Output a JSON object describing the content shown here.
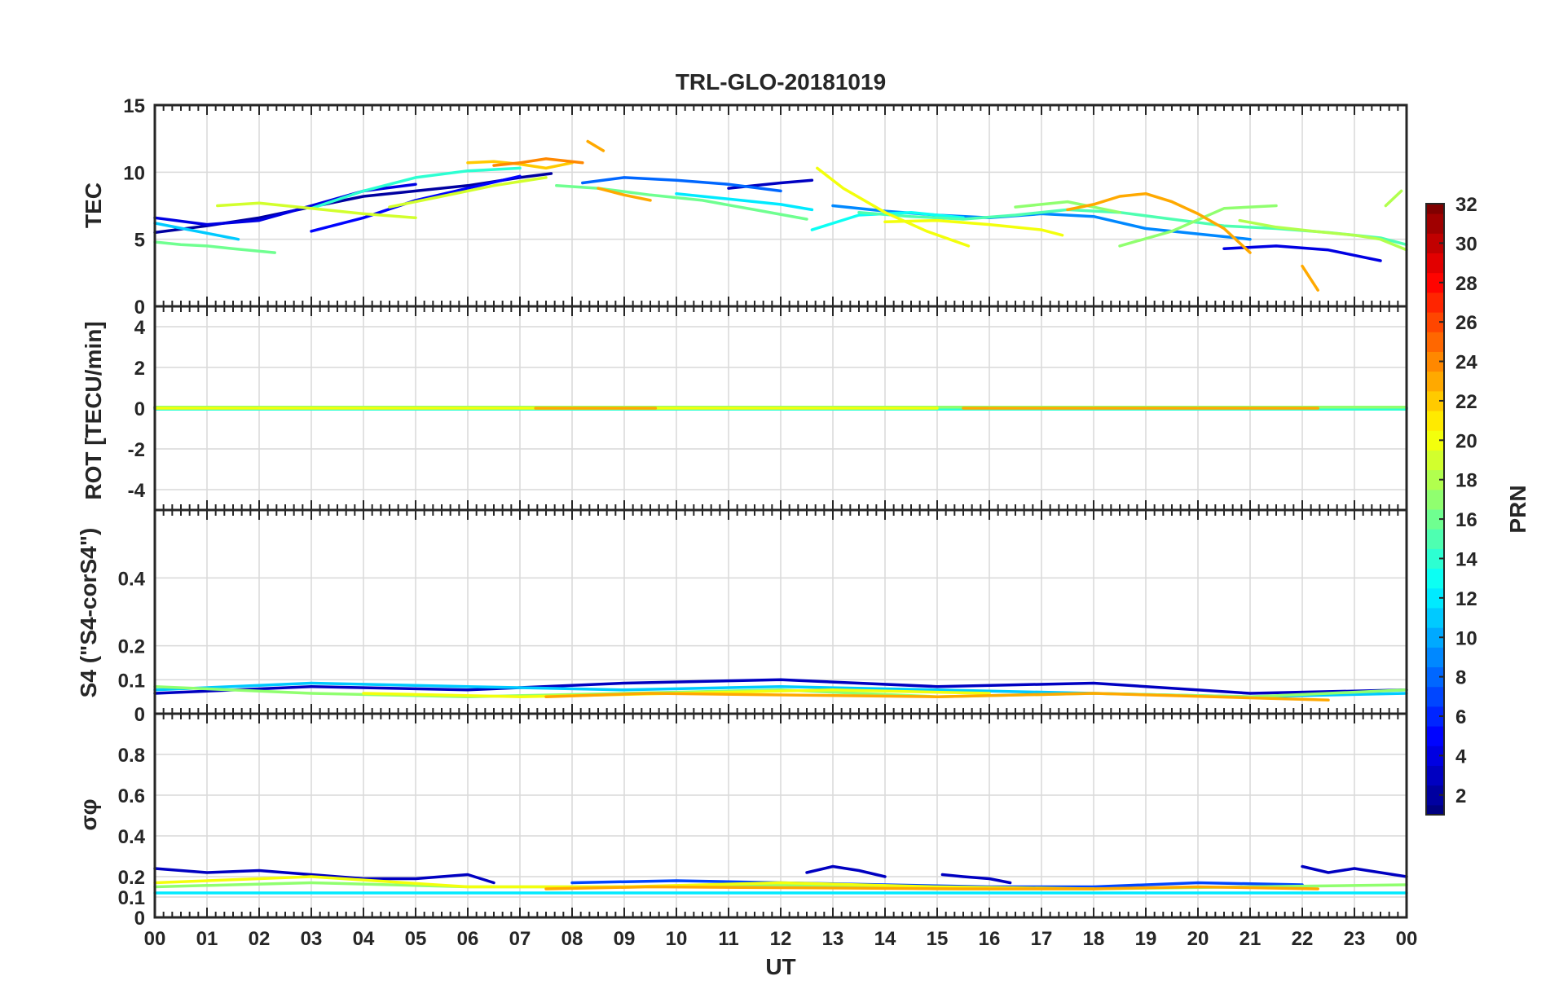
{
  "chart_data": {
    "type": "line",
    "title": "TRL-GLO-20181019",
    "xlabel": "UT",
    "x_ticks": [
      "00",
      "01",
      "02",
      "03",
      "04",
      "05",
      "06",
      "07",
      "08",
      "09",
      "10",
      "11",
      "12",
      "13",
      "14",
      "15",
      "16",
      "17",
      "18",
      "19",
      "20",
      "21",
      "22",
      "23",
      "00"
    ],
    "xlim": [
      0,
      24
    ],
    "panels": [
      {
        "ylabel": "TEC",
        "ylim": [
          0,
          15
        ],
        "y_ticks": [
          "0",
          "5",
          "10",
          "15"
        ],
        "series": [
          {
            "prn": 2,
            "x": [
              0,
              1,
              2,
              3,
              4,
              5,
              6,
              7,
              7.6
            ],
            "y": [
              5.5,
              6.0,
              6.6,
              7.4,
              8.2,
              8.6,
              9.0,
              9.6,
              9.9
            ]
          },
          {
            "prn": 3,
            "x": [
              11.0,
              11.5,
              12.0,
              12.6
            ],
            "y": [
              8.8,
              9.0,
              9.2,
              9.4
            ]
          },
          {
            "prn": 4,
            "x": [
              0,
              1,
              2,
              3,
              4,
              5
            ],
            "y": [
              6.6,
              6.1,
              6.4,
              7.5,
              8.6,
              9.1
            ]
          },
          {
            "prn": 5,
            "x": [
              3,
              4,
              5,
              6,
              7
            ],
            "y": [
              5.6,
              6.6,
              7.9,
              8.8,
              9.7
            ]
          },
          {
            "prn": 4,
            "x": [
              20.5,
              21.5,
              22.5,
              23.5
            ],
            "y": [
              4.3,
              4.5,
              4.2,
              3.4
            ]
          },
          {
            "prn": 8,
            "x": [
              8.2,
              9,
              10,
              11,
              12
            ],
            "y": [
              9.2,
              9.6,
              9.4,
              9.1,
              8.6
            ]
          },
          {
            "prn": 9,
            "x": [
              13.0,
              14,
              15,
              16,
              17,
              18,
              19,
              20,
              21
            ],
            "y": [
              7.5,
              7.1,
              6.8,
              6.6,
              6.9,
              6.7,
              5.8,
              5.4,
              5.0
            ]
          },
          {
            "prn": 11,
            "x": [
              0,
              0.8,
              1.6
            ],
            "y": [
              6.2,
              5.6,
              5.0
            ]
          },
          {
            "prn": 12,
            "x": [
              10,
              11,
              12,
              12.6
            ],
            "y": [
              8.4,
              8.0,
              7.6,
              7.2
            ]
          },
          {
            "prn": 13,
            "x": [
              12.6,
              13.5,
              14.5,
              15.5
            ],
            "y": [
              5.7,
              6.8,
              7.0,
              6.6
            ]
          },
          {
            "prn": 14,
            "x": [
              3,
              4,
              5,
              6,
              7
            ],
            "y": [
              7.3,
              8.6,
              9.6,
              10.1,
              10.3
            ]
          },
          {
            "prn": 15,
            "x": [
              13.5,
              14.5,
              15.5,
              16.5,
              17.5,
              18.5,
              19.5,
              20.5,
              21.5,
              22.5,
              23.5,
              24
            ],
            "y": [
              7.0,
              6.7,
              6.5,
              6.8,
              7.2,
              7.0,
              6.5,
              6.0,
              5.8,
              5.5,
              5.1,
              4.6
            ]
          },
          {
            "prn": 16,
            "x": [
              0,
              0.5,
              1,
              1.5,
              2.3
            ],
            "y": [
              4.8,
              4.6,
              4.5,
              4.3,
              4.0
            ]
          },
          {
            "prn": 16,
            "x": [
              7.7,
              8.5,
              9.5,
              10.5,
              11.5,
              12.5
            ],
            "y": [
              9.0,
              8.8,
              8.3,
              7.9,
              7.2,
              6.5
            ]
          },
          {
            "prn": 17,
            "x": [
              16.5,
              17.5,
              18.5
            ],
            "y": [
              7.4,
              7.8,
              7.0
            ]
          },
          {
            "prn": 17,
            "x": [
              18.5,
              19.5,
              20.5,
              21.5
            ],
            "y": [
              4.5,
              5.6,
              7.3,
              7.5
            ]
          },
          {
            "prn": 18,
            "x": [
              20.8,
              21.5,
              22.2,
              23,
              23.5,
              24
            ],
            "y": [
              6.4,
              5.9,
              5.6,
              5.3,
              5.0,
              4.2
            ]
          },
          {
            "prn": 18,
            "x": [
              23.6,
              23.9
            ],
            "y": [
              7.5,
              8.6
            ]
          },
          {
            "prn": 19,
            "x": [
              1.2,
              2,
              3,
              4,
              5
            ],
            "y": [
              7.5,
              7.7,
              7.3,
              6.9,
              6.6
            ]
          },
          {
            "prn": 19,
            "x": [
              4.5,
              5.5,
              6.5,
              7.5
            ],
            "y": [
              7.4,
              8.2,
              9.0,
              9.6
            ]
          },
          {
            "prn": 20,
            "x": [
              12.7,
              13.2,
              14,
              14.8,
              15.6
            ],
            "y": [
              10.3,
              8.8,
              7.0,
              5.6,
              4.5
            ]
          },
          {
            "prn": 20,
            "x": [
              14,
              15,
              16,
              17,
              17.4
            ],
            "y": [
              6.3,
              6.4,
              6.1,
              5.7,
              5.3
            ]
          },
          {
            "prn": 22,
            "x": [
              6,
              6.5,
              7,
              7.5,
              8
            ],
            "y": [
              10.7,
              10.8,
              10.6,
              10.3,
              10.7
            ]
          },
          {
            "prn": 23,
            "x": [
              8.3,
              8.6
            ],
            "y": [
              12.3,
              11.6
            ]
          },
          {
            "prn": 23,
            "x": [
              8.5,
              9,
              9.5
            ],
            "y": [
              8.8,
              8.3,
              7.9
            ]
          },
          {
            "prn": 23,
            "x": [
              17.5,
              18,
              18.5,
              19,
              19.5,
              20,
              20.5,
              21
            ],
            "y": [
              7.2,
              7.6,
              8.2,
              8.4,
              7.8,
              6.9,
              5.8,
              4.0
            ]
          },
          {
            "prn": 23,
            "x": [
              22.0,
              22.3
            ],
            "y": [
              3.0,
              1.2
            ]
          },
          {
            "prn": 24,
            "x": [
              6.5,
              7,
              7.5,
              8.2
            ],
            "y": [
              10.5,
              10.7,
              11.0,
              10.7
            ]
          }
        ]
      },
      {
        "ylabel": "ROT [TECU/min]",
        "ylim": [
          -5,
          5
        ],
        "y_ticks": [
          "-4",
          "-2",
          "0",
          "2",
          "4"
        ],
        "series": [
          {
            "prn": 3,
            "x": [
              0,
              12.6
            ],
            "y": [
              0.05,
              0.05
            ]
          },
          {
            "prn": 9,
            "x": [
              0,
              24
            ],
            "y": [
              0.0,
              0.0
            ]
          },
          {
            "prn": 14,
            "x": [
              0,
              24
            ],
            "y": [
              -0.05,
              -0.05
            ]
          },
          {
            "prn": 17,
            "x": [
              0,
              24
            ],
            "y": [
              0.05,
              0.05
            ]
          },
          {
            "prn": 20,
            "x": [
              0,
              15
            ],
            "y": [
              0.0,
              0.0
            ]
          },
          {
            "prn": 23,
            "x": [
              7.3,
              9.6
            ],
            "y": [
              0.0,
              0.0
            ]
          },
          {
            "prn": 23,
            "x": [
              15.5,
              22.3
            ],
            "y": [
              0.0,
              0.0
            ]
          }
        ]
      },
      {
        "ylabel": "S4 (\"S4-corS4\")",
        "ylim": [
          0,
          0.6
        ],
        "y_ticks": [
          "0",
          "0.1",
          "0.2",
          "0.4"
        ],
        "series": [
          {
            "prn": 3,
            "x": [
              0,
              3,
              6,
              9,
              12,
              15,
              18,
              21,
              24
            ],
            "y": [
              0.06,
              0.08,
              0.07,
              0.09,
              0.1,
              0.08,
              0.09,
              0.06,
              0.07
            ]
          },
          {
            "prn": 11,
            "x": [
              0,
              3,
              6,
              9,
              12,
              15,
              18,
              21,
              24
            ],
            "y": [
              0.07,
              0.09,
              0.08,
              0.07,
              0.08,
              0.07,
              0.06,
              0.05,
              0.06
            ]
          },
          {
            "prn": 17,
            "x": [
              0,
              3,
              6,
              9,
              12,
              15,
              18,
              21,
              24
            ],
            "y": [
              0.08,
              0.06,
              0.05,
              0.06,
              0.07,
              0.05,
              0.06,
              0.05,
              0.07
            ]
          },
          {
            "prn": 20,
            "x": [
              4,
              7,
              10,
              13,
              16
            ],
            "y": [
              0.06,
              0.05,
              0.06,
              0.07,
              0.06
            ]
          },
          {
            "prn": 23,
            "x": [
              7.5,
              9.5,
              15,
              18,
              22.5
            ],
            "y": [
              0.05,
              0.06,
              0.05,
              0.06,
              0.04
            ]
          }
        ]
      },
      {
        "ylabel": "σφ",
        "ylim": [
          0,
          1
        ],
        "y_ticks": [
          "0",
          "0.1",
          "0.2",
          "0.4",
          "0.6",
          "0.8"
        ],
        "series": [
          {
            "prn": 3,
            "x": [
              0,
              1,
              2,
              3,
              4,
              5,
              6,
              6.5
            ],
            "y": [
              0.24,
              0.22,
              0.23,
              0.21,
              0.19,
              0.19,
              0.21,
              0.17
            ]
          },
          {
            "prn": 3,
            "x": [
              12.5,
              13,
              13.5,
              14
            ],
            "y": [
              0.22,
              0.25,
              0.23,
              0.2
            ]
          },
          {
            "prn": 3,
            "x": [
              15.1,
              15.5,
              16,
              16.4
            ],
            "y": [
              0.21,
              0.2,
              0.19,
              0.17
            ]
          },
          {
            "prn": 3,
            "x": [
              22,
              22.5,
              23,
              23.5,
              24
            ],
            "y": [
              0.25,
              0.22,
              0.24,
              0.22,
              0.2
            ]
          },
          {
            "prn": 7,
            "x": [
              8,
              10,
              12,
              14,
              16,
              18,
              20,
              22
            ],
            "y": [
              0.17,
              0.18,
              0.17,
              0.16,
              0.15,
              0.15,
              0.17,
              0.16
            ]
          },
          {
            "prn": 12,
            "x": [
              0,
              6,
              12,
              18,
              24
            ],
            "y": [
              0.12,
              0.12,
              0.12,
              0.12,
              0.12
            ]
          },
          {
            "prn": 17,
            "x": [
              0,
              3,
              6,
              9,
              12,
              15,
              18,
              21,
              24
            ],
            "y": [
              0.15,
              0.17,
              0.15,
              0.15,
              0.16,
              0.14,
              0.14,
              0.15,
              0.16
            ]
          },
          {
            "prn": 20,
            "x": [
              0,
              3,
              6,
              9,
              12,
              15,
              18
            ],
            "y": [
              0.17,
              0.2,
              0.15,
              0.15,
              0.17,
              0.15,
              0.14
            ]
          },
          {
            "prn": 23,
            "x": [
              7.5,
              9.5,
              15.5,
              18,
              20,
              22.3
            ],
            "y": [
              0.14,
              0.15,
              0.14,
              0.14,
              0.15,
              0.14
            ]
          }
        ]
      }
    ],
    "colorbar": {
      "label": "PRN",
      "colormap": "jet",
      "range": [
        1,
        32
      ],
      "ticks": [
        "2",
        "4",
        "6",
        "8",
        "10",
        "12",
        "14",
        "16",
        "18",
        "20",
        "22",
        "24",
        "26",
        "28",
        "30",
        "32"
      ]
    }
  }
}
